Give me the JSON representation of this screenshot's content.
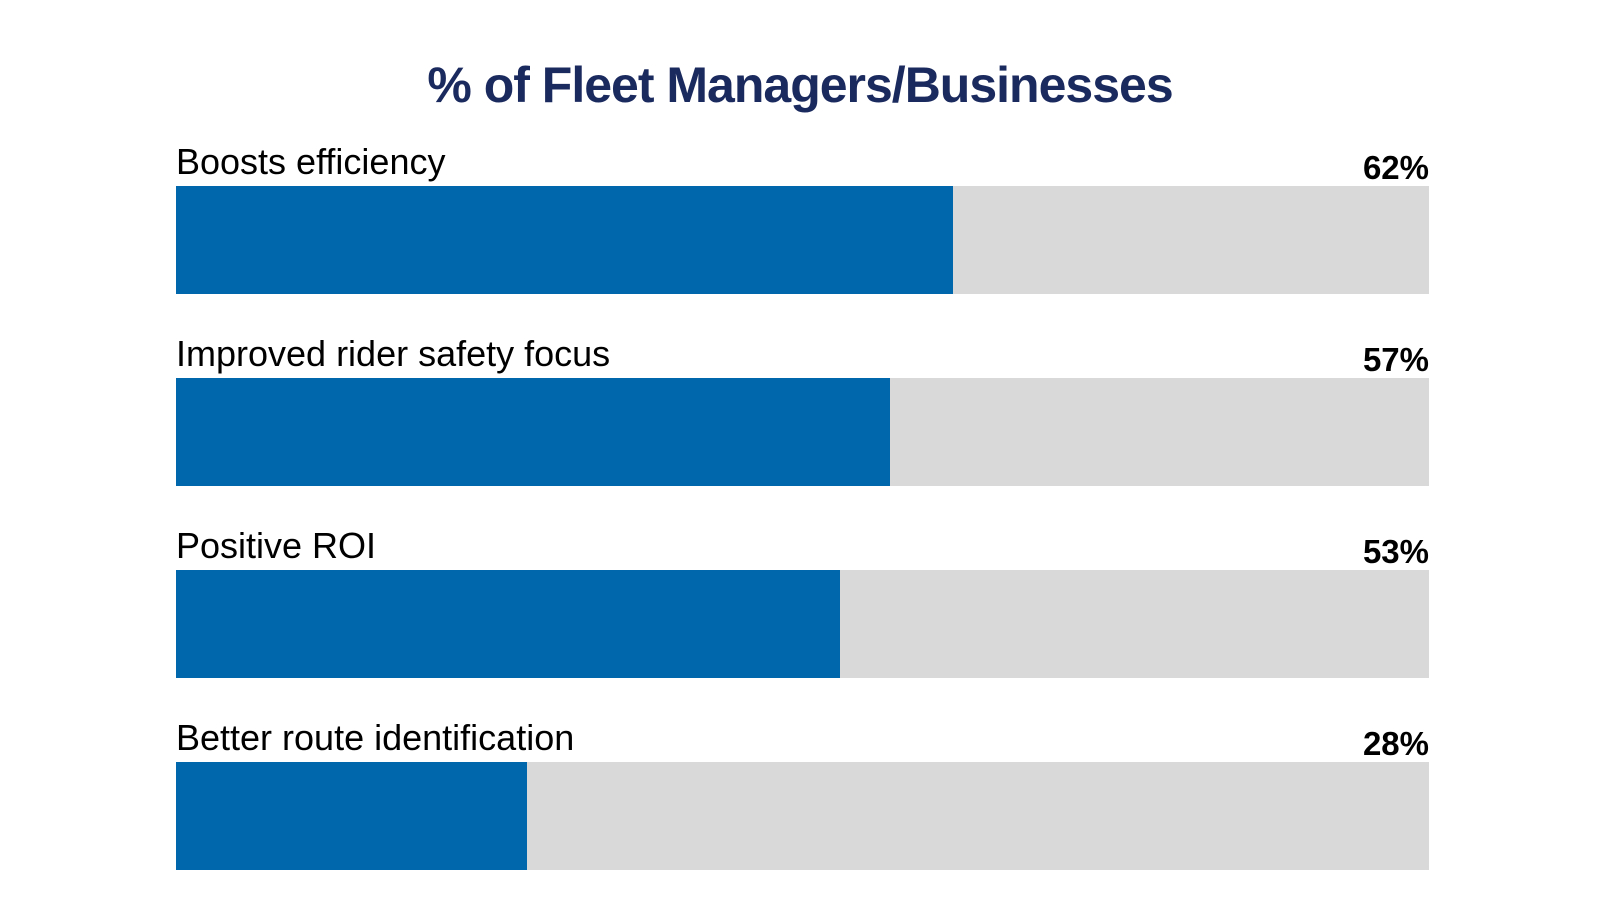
{
  "chart_data": {
    "type": "bar",
    "orientation": "horizontal",
    "title": "% of Fleet Managers/Businesses",
    "categories": [
      "Boosts efficiency",
      "Improved rider safety focus",
      "Positive ROI",
      "Better route identification"
    ],
    "values": [
      62,
      57,
      53,
      28
    ],
    "value_labels": [
      "62%",
      "57%",
      "53%",
      "28%"
    ],
    "xlim": [
      0,
      100
    ],
    "grid": false,
    "legend": "none"
  },
  "colors": {
    "title": "#1b2a5e",
    "bar_fill": "#0067ad",
    "bar_track": "#d9d9d9",
    "text": "#000000"
  }
}
